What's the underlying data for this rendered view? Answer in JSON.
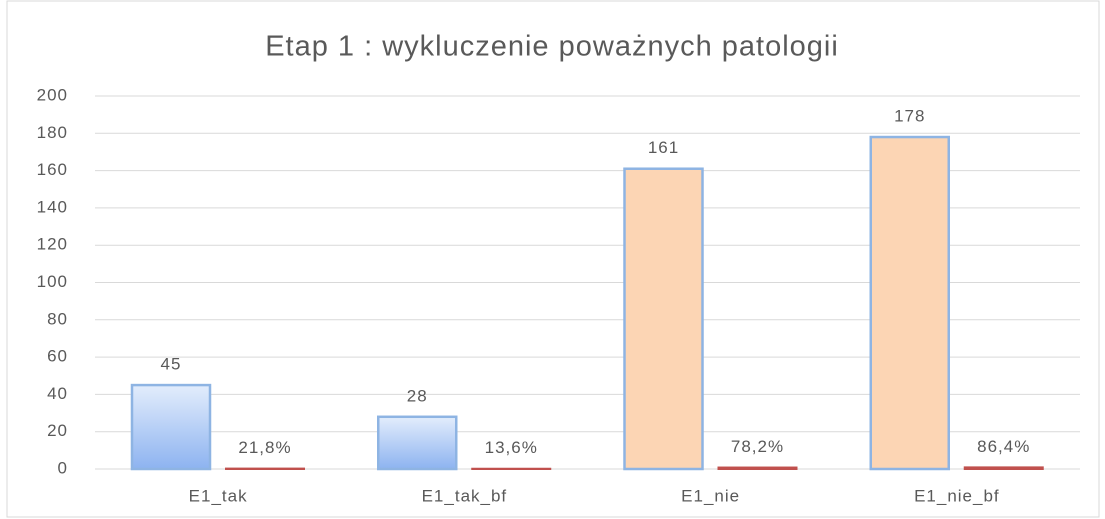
{
  "chart_data": {
    "type": "bar",
    "title": "Etap 1 : wykluczenie poważnych patologii",
    "categories": [
      "E1_tak",
      "E1_tak_bf",
      "E1_nie",
      "E1_nie_bf"
    ],
    "series": [
      {
        "colors": [
          "#a9c6f5",
          "#a9c6f5",
          "#fcd5b4",
          "#fcd5b4"
        ],
        "values": [
          45,
          28,
          161,
          178
        ]
      },
      {
        "color": "#c0504d",
        "values": [
          0.218,
          0.136,
          0.782,
          0.864
        ],
        "value_labels": [
          "21,8%",
          "13,6%",
          "78,2%",
          "86,4%"
        ]
      }
    ],
    "ylim": [
      0,
      200
    ],
    "yticks": [
      0,
      20,
      40,
      60,
      80,
      100,
      120,
      140,
      160,
      180,
      200
    ],
    "grid": true
  }
}
